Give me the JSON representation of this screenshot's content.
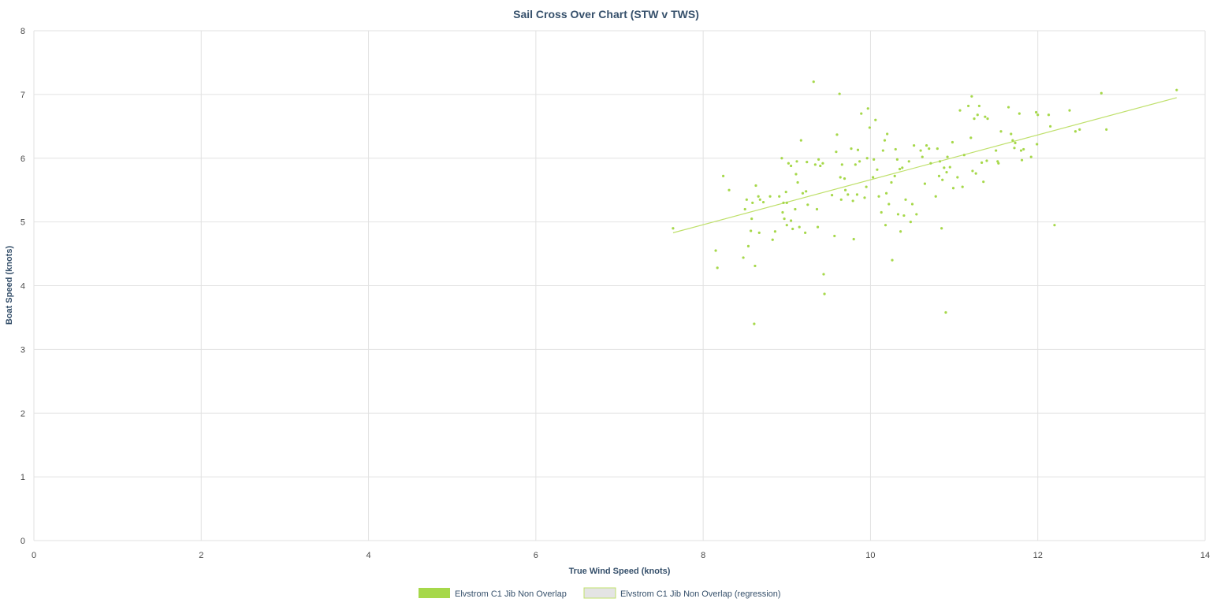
{
  "chart_data": {
    "type": "scatter",
    "title": "Sail Cross Over Chart (STW v TWS)",
    "xlabel": "True Wind Speed (knots)",
    "ylabel": "Boat Speed (knots)",
    "xlim": [
      0,
      14
    ],
    "ylim": [
      0,
      8
    ],
    "x_ticks": [
      "0",
      "2",
      "4",
      "6",
      "8",
      "10",
      "12",
      "14"
    ],
    "y_ticks": [
      "0",
      "1",
      "2",
      "3",
      "4",
      "5",
      "6",
      "7",
      "8"
    ],
    "grid": true,
    "legend_position": "bottom-center",
    "colors": {
      "scatter": "#a6d84a",
      "regression_line": "#bfe06b",
      "regression_swatch": "#e4e4e4",
      "regression_swatch_border": "#bfe06b"
    },
    "series": [
      {
        "name": "Elvstrom C1 Jib Non Overlap",
        "type": "scatter",
        "points": [
          [
            7.64,
            4.9
          ],
          [
            8.15,
            4.55
          ],
          [
            8.17,
            4.28
          ],
          [
            8.24,
            5.72
          ],
          [
            8.31,
            5.5
          ],
          [
            8.48,
            4.44
          ],
          [
            8.5,
            5.2
          ],
          [
            8.52,
            5.35
          ],
          [
            8.54,
            4.62
          ],
          [
            8.57,
            4.86
          ],
          [
            8.58,
            5.05
          ],
          [
            8.59,
            5.3
          ],
          [
            8.61,
            3.4
          ],
          [
            8.62,
            4.31
          ],
          [
            8.63,
            5.57
          ],
          [
            8.66,
            5.4
          ],
          [
            8.67,
            4.83
          ],
          [
            8.68,
            5.35
          ],
          [
            8.72,
            5.31
          ],
          [
            8.8,
            5.4
          ],
          [
            8.83,
            4.72
          ],
          [
            8.86,
            4.85
          ],
          [
            8.91,
            5.4
          ],
          [
            8.94,
            6.0
          ],
          [
            8.95,
            5.15
          ],
          [
            8.96,
            5.3
          ],
          [
            8.97,
            5.05
          ],
          [
            8.99,
            5.47
          ],
          [
            9.0,
            5.3
          ],
          [
            9.0,
            4.95
          ],
          [
            9.02,
            5.92
          ],
          [
            9.05,
            5.88
          ],
          [
            9.05,
            5.02
          ],
          [
            9.07,
            4.89
          ],
          [
            9.1,
            5.2
          ],
          [
            9.11,
            5.75
          ],
          [
            9.12,
            5.95
          ],
          [
            9.13,
            5.62
          ],
          [
            9.15,
            4.92
          ],
          [
            9.17,
            6.28
          ],
          [
            9.19,
            5.45
          ],
          [
            9.22,
            4.83
          ],
          [
            9.23,
            5.48
          ],
          [
            9.24,
            5.94
          ],
          [
            9.25,
            5.27
          ],
          [
            9.32,
            7.2
          ],
          [
            9.34,
            5.9
          ],
          [
            9.36,
            5.2
          ],
          [
            9.37,
            4.92
          ],
          [
            9.38,
            5.98
          ],
          [
            9.4,
            5.88
          ],
          [
            9.43,
            5.92
          ],
          [
            9.44,
            4.18
          ],
          [
            9.45,
            3.87
          ],
          [
            9.54,
            5.42
          ],
          [
            9.57,
            4.78
          ],
          [
            9.59,
            6.1
          ],
          [
            9.6,
            6.37
          ],
          [
            9.63,
            7.01
          ],
          [
            9.64,
            5.7
          ],
          [
            9.65,
            5.35
          ],
          [
            9.66,
            5.9
          ],
          [
            9.69,
            5.68
          ],
          [
            9.7,
            5.5
          ],
          [
            9.73,
            5.43
          ],
          [
            9.77,
            6.15
          ],
          [
            9.79,
            5.33
          ],
          [
            9.8,
            4.73
          ],
          [
            9.82,
            5.9
          ],
          [
            9.84,
            5.43
          ],
          [
            9.85,
            6.13
          ],
          [
            9.87,
            5.95
          ],
          [
            9.89,
            6.7
          ],
          [
            9.93,
            5.38
          ],
          [
            9.95,
            5.55
          ],
          [
            9.96,
            6.0
          ],
          [
            9.97,
            6.78
          ],
          [
            9.99,
            6.48
          ],
          [
            10.03,
            5.7
          ],
          [
            10.04,
            5.98
          ],
          [
            10.06,
            6.6
          ],
          [
            10.08,
            5.82
          ],
          [
            10.1,
            5.4
          ],
          [
            10.13,
            5.15
          ],
          [
            10.15,
            6.12
          ],
          [
            10.17,
            6.28
          ],
          [
            10.18,
            4.95
          ],
          [
            10.19,
            5.45
          ],
          [
            10.2,
            6.38
          ],
          [
            10.22,
            5.28
          ],
          [
            10.25,
            5.62
          ],
          [
            10.26,
            4.4
          ],
          [
            10.29,
            5.72
          ],
          [
            10.3,
            6.14
          ],
          [
            10.32,
            5.98
          ],
          [
            10.33,
            5.12
          ],
          [
            10.35,
            5.83
          ],
          [
            10.36,
            4.85
          ],
          [
            10.38,
            5.85
          ],
          [
            10.4,
            5.1
          ],
          [
            10.42,
            5.35
          ],
          [
            10.46,
            5.95
          ],
          [
            10.48,
            5.0
          ],
          [
            10.5,
            5.28
          ],
          [
            10.52,
            6.2
          ],
          [
            10.55,
            5.12
          ],
          [
            10.6,
            6.12
          ],
          [
            10.62,
            6.02
          ],
          [
            10.65,
            5.6
          ],
          [
            10.67,
            6.2
          ],
          [
            10.7,
            6.15
          ],
          [
            10.72,
            5.92
          ],
          [
            10.78,
            5.4
          ],
          [
            10.8,
            6.15
          ],
          [
            10.82,
            5.72
          ],
          [
            10.83,
            5.95
          ],
          [
            10.85,
            4.9
          ],
          [
            10.86,
            5.66
          ],
          [
            10.88,
            5.85
          ],
          [
            10.9,
            3.58
          ],
          [
            10.91,
            5.78
          ],
          [
            10.92,
            6.02
          ],
          [
            10.95,
            5.86
          ],
          [
            10.98,
            6.25
          ],
          [
            10.99,
            5.53
          ],
          [
            11.04,
            5.7
          ],
          [
            11.07,
            6.75
          ],
          [
            11.1,
            5.55
          ],
          [
            11.12,
            6.05
          ],
          [
            11.17,
            6.82
          ],
          [
            11.2,
            6.32
          ],
          [
            11.21,
            6.97
          ],
          [
            11.22,
            5.8
          ],
          [
            11.24,
            6.62
          ],
          [
            11.26,
            5.76
          ],
          [
            11.28,
            6.68
          ],
          [
            11.3,
            6.82
          ],
          [
            11.33,
            5.93
          ],
          [
            11.35,
            5.63
          ],
          [
            11.37,
            6.65
          ],
          [
            11.39,
            5.96
          ],
          [
            11.4,
            6.62
          ],
          [
            11.5,
            6.12
          ],
          [
            11.52,
            5.95
          ],
          [
            11.53,
            5.92
          ],
          [
            11.56,
            6.42
          ],
          [
            11.65,
            6.8
          ],
          [
            11.68,
            6.38
          ],
          [
            11.7,
            6.28
          ],
          [
            11.72,
            6.16
          ],
          [
            11.73,
            6.24
          ],
          [
            11.78,
            6.7
          ],
          [
            11.8,
            6.12
          ],
          [
            11.81,
            5.97
          ],
          [
            11.83,
            6.14
          ],
          [
            11.92,
            6.02
          ],
          [
            11.98,
            6.72
          ],
          [
            11.99,
            6.22
          ],
          [
            12.0,
            6.68
          ],
          [
            12.13,
            6.68
          ],
          [
            12.15,
            6.5
          ],
          [
            12.2,
            4.95
          ],
          [
            12.38,
            6.75
          ],
          [
            12.45,
            6.42
          ],
          [
            12.5,
            6.45
          ],
          [
            12.76,
            7.02
          ],
          [
            12.82,
            6.45
          ],
          [
            13.66,
            7.07
          ]
        ]
      },
      {
        "name": "Elvstrom C1 Jib Non Overlap (regression)",
        "type": "line",
        "points": [
          [
            7.64,
            4.83
          ],
          [
            13.66,
            6.95
          ]
        ]
      }
    ]
  }
}
